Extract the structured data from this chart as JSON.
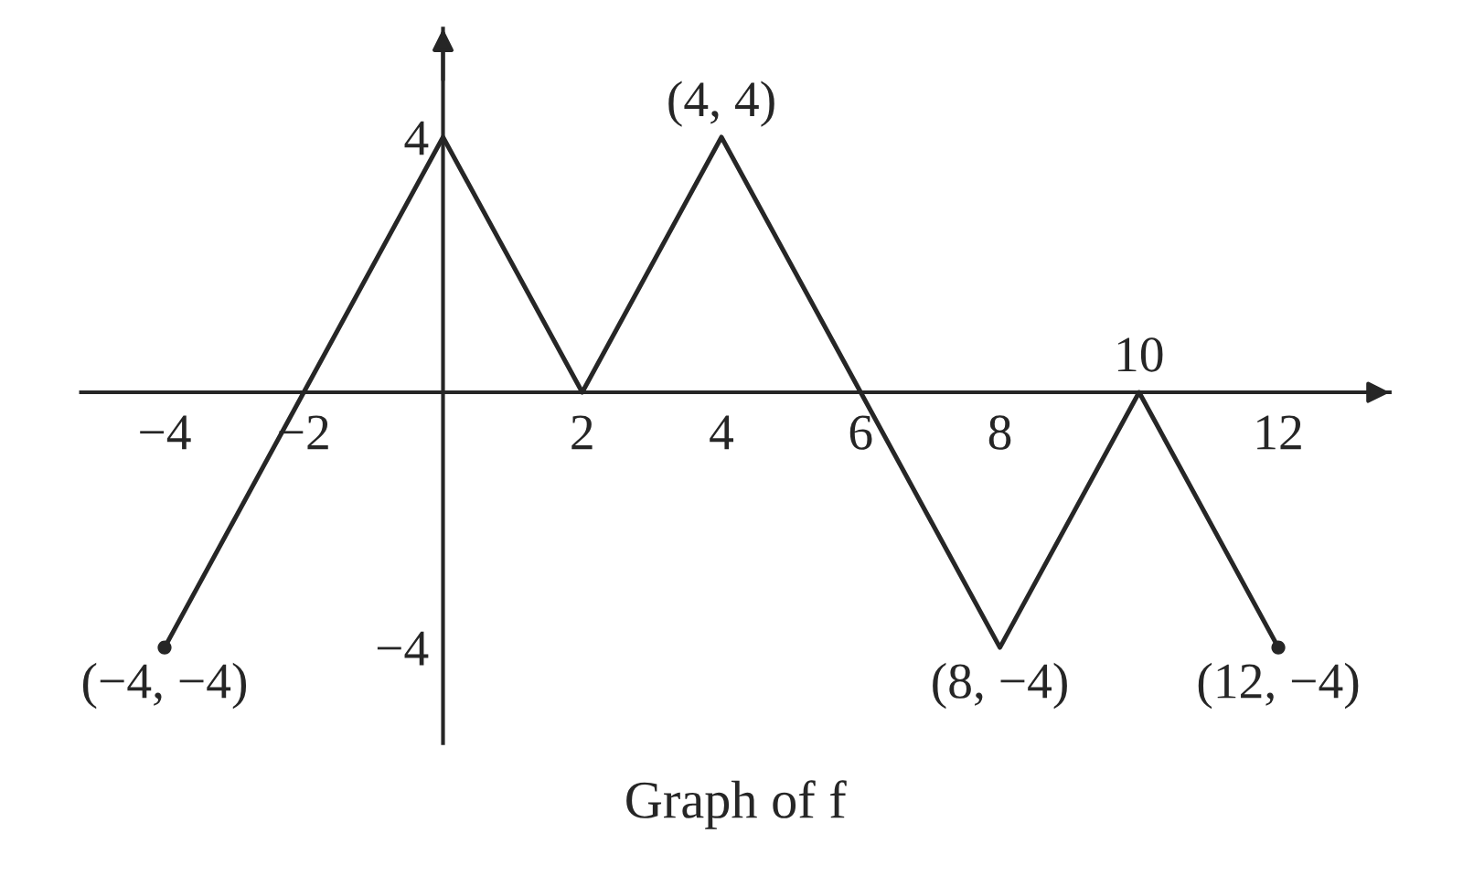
{
  "chart_data": {
    "type": "line",
    "x": [
      -4,
      -2,
      0,
      2,
      4,
      6,
      8,
      10,
      12
    ],
    "series": [
      {
        "color": "#262626",
        "values": [
          -4,
          0,
          4,
          0,
          4,
          0,
          -4,
          0,
          -4
        ]
      },
      {
        "type": "scatter",
        "color": "#262626",
        "x": [
          -4,
          12
        ],
        "values": [
          -4,
          -4
        ],
        "marker": "circle"
      }
    ],
    "xlim": [
      -5.2,
      13.6
    ],
    "ylim": [
      -5.5,
      5.7
    ],
    "xticks": [
      {
        "value": -4,
        "label": "−4"
      },
      {
        "value": -2,
        "label": "−2"
      },
      2,
      4,
      6,
      8,
      12
    ],
    "yticks": [
      {
        "value": -4,
        "label": "−4"
      },
      4
    ],
    "annotations": [
      {
        "text": "(4, 4)",
        "x": 4,
        "y": 4
      },
      {
        "text": "10",
        "x": 10,
        "y": 0
      },
      {
        "text": "(−4, −4)",
        "x": -4,
        "y": -4
      },
      {
        "text": "(8, −4)",
        "x": 8,
        "y": -4
      },
      {
        "text": "(12, −4)",
        "x": 12,
        "y": -4
      },
      "Graph of f"
    ]
  }
}
